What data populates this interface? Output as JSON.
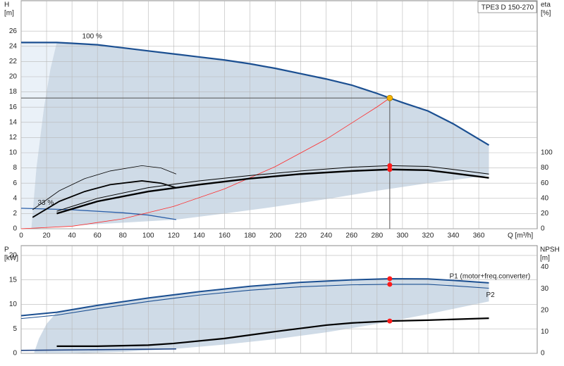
{
  "chart_data": [
    {
      "type": "line",
      "title": "TPE3 D 150-270",
      "y_label": "H",
      "y_unit": "[m]",
      "y2_label": "eta",
      "y2_unit": "[%]",
      "x_label": "Q [m³/h]",
      "xlim": [
        0,
        406
      ],
      "xticks": [
        0,
        20,
        40,
        60,
        80,
        100,
        120,
        140,
        160,
        180,
        200,
        220,
        240,
        260,
        280,
        300,
        320,
        340,
        360
      ],
      "show_xtick_labels": true,
      "ylim": [
        0,
        30
      ],
      "yticks": [
        0,
        2,
        4,
        6,
        8,
        10,
        12,
        14,
        16,
        18,
        20,
        22,
        24,
        26
      ],
      "y2lim": [
        0,
        300
      ],
      "y2ticks": [
        0,
        20,
        40,
        60,
        80,
        100
      ],
      "grid": true,
      "duty_x": 290,
      "marker_color": "#ff1a1a",
      "operating_point": {
        "x": 290,
        "y": 17.2,
        "color": "#f5b400"
      },
      "regions": [
        {
          "color": "#eaf1f8",
          "x": [
            0,
            28,
            23,
            18,
            12,
            8,
            0
          ],
          "values": [
            24.5,
            24.5,
            21,
            16,
            8,
            0,
            0
          ]
        },
        {
          "color": "#cfdbe7",
          "x": [
            8,
            12,
            18,
            23,
            28,
            60,
            100,
            140,
            180,
            220,
            260,
            290,
            320,
            340,
            368,
            368,
            320,
            280,
            240,
            200,
            160,
            122,
            60
          ],
          "values": [
            0,
            8,
            16,
            21,
            24.5,
            24.2,
            23.4,
            22.6,
            21.7,
            20.4,
            18.9,
            17.2,
            15.5,
            13.8,
            11.0,
            7.0,
            6.0,
            5.0,
            3.9,
            2.9,
            2.0,
            1.2,
            0.6
          ]
        }
      ],
      "series": [
        {
          "color": "#1b4f91",
          "width": 2.2,
          "x": [
            0,
            28,
            40,
            60,
            80,
            100,
            120,
            140,
            160,
            180,
            200,
            220,
            240,
            260,
            280,
            290,
            300,
            320,
            340,
            368
          ],
          "values": [
            24.5,
            24.5,
            24.4,
            24.2,
            23.8,
            23.4,
            23.0,
            22.6,
            22.2,
            21.7,
            21.1,
            20.4,
            19.7,
            18.9,
            17.8,
            17.2,
            16.6,
            15.5,
            13.8,
            11.0
          ]
        },
        {
          "color": "#2a5ea8",
          "width": 1.3,
          "x": [
            0,
            40,
            80,
            100,
            122
          ],
          "values": [
            2.7,
            2.5,
            2.1,
            1.8,
            1.2
          ]
        },
        {
          "color": "#ff2a2a",
          "width": 0.8,
          "x": [
            0,
            40,
            80,
            120,
            160,
            200,
            240,
            280,
            290
          ],
          "values": [
            0,
            0.33,
            1.31,
            2.94,
            5.24,
            8.18,
            11.78,
            16.03,
            17.2
          ]
        },
        {
          "color": "#000000",
          "width": 1,
          "axis": "y2",
          "dot": true,
          "x": [
            28,
            60,
            100,
            140,
            180,
            220,
            260,
            290,
            320,
            340,
            368
          ],
          "values": [
            23,
            40,
            54,
            63,
            70,
            76,
            81,
            83,
            82,
            78,
            72
          ]
        },
        {
          "color": "#000000",
          "width": 2.4,
          "axis": "y2",
          "dot": true,
          "x": [
            28,
            60,
            100,
            140,
            180,
            220,
            260,
            290,
            320,
            340,
            368
          ],
          "values": [
            20,
            36,
            49,
            58,
            66,
            72,
            76,
            78,
            77,
            73,
            67
          ]
        },
        {
          "color": "#000000",
          "width": 0.8,
          "axis": "y2",
          "x": [
            9,
            30,
            50,
            70,
            95,
            110,
            122
          ],
          "values": [
            25,
            50,
            66,
            76,
            83,
            80,
            72
          ]
        },
        {
          "color": "#000000",
          "width": 1.8,
          "axis": "y2",
          "x": [
            9,
            30,
            50,
            70,
            95,
            110,
            122
          ],
          "values": [
            15,
            36,
            49,
            58,
            63,
            60,
            54
          ]
        }
      ],
      "annotations": [
        {
          "text": "100 %",
          "x": 48,
          "y": 25.3
        },
        {
          "text": "33 %",
          "x": 13,
          "y": 3.4
        }
      ]
    },
    {
      "type": "line",
      "y_label": "P",
      "y_unit": "[kW]",
      "y2_label": "NPSH",
      "y2_unit": "[m]",
      "xlim": [
        0,
        406
      ],
      "xticks": [
        0,
        20,
        40,
        60,
        80,
        100,
        120,
        140,
        160,
        180,
        200,
        220,
        240,
        260,
        280,
        300,
        320,
        340,
        360
      ],
      "show_xtick_labels": false,
      "ylim": [
        0,
        22
      ],
      "yticks": [
        0,
        5,
        10,
        15,
        20
      ],
      "y2lim": [
        0,
        50
      ],
      "y2ticks": [
        0,
        10,
        20,
        30,
        40
      ],
      "grid": true,
      "duty_x": 290,
      "marker_color": "#ff1a1a",
      "regions": [
        {
          "color": "#cfdbe7",
          "x": [
            10,
            14,
            20,
            28,
            60,
            100,
            140,
            180,
            220,
            260,
            290,
            320,
            340,
            368,
            368,
            320,
            280,
            240,
            200,
            160,
            120,
            80,
            40
          ],
          "values": [
            0,
            3,
            6,
            8.4,
            9.8,
            11.3,
            12.6,
            13.7,
            14.5,
            15.0,
            15.25,
            15.2,
            14.9,
            14.4,
            10.6,
            8.0,
            6.0,
            4.3,
            2.9,
            1.8,
            0.9,
            0.3,
            0
          ]
        }
      ],
      "series": [
        {
          "name": "P1 (motor+freq.converter)",
          "label_side": "above",
          "color": "#1b4f91",
          "width": 2,
          "dot": true,
          "x": [
            0,
            28,
            60,
            100,
            140,
            180,
            220,
            260,
            290,
            320,
            340,
            368
          ],
          "values": [
            7.7,
            8.4,
            9.8,
            11.3,
            12.6,
            13.7,
            14.5,
            15.0,
            15.25,
            15.2,
            14.9,
            14.4
          ]
        },
        {
          "name": "P2",
          "label_side": "below",
          "color": "#1b4f91",
          "width": 1.1,
          "dot": true,
          "x": [
            0,
            28,
            60,
            100,
            140,
            180,
            220,
            260,
            290,
            320,
            340,
            368
          ],
          "values": [
            7.1,
            7.8,
            9.1,
            10.6,
            11.9,
            12.9,
            13.6,
            14.0,
            14.1,
            14.1,
            13.8,
            13.3
          ]
        },
        {
          "color": "#000000",
          "width": 2.2,
          "axis": "y2",
          "dot": true,
          "x": [
            28,
            60,
            100,
            120,
            160,
            200,
            240,
            260,
            290,
            320,
            368
          ],
          "values": [
            3.3,
            3.3,
            3.8,
            4.6,
            6.9,
            10.1,
            13.1,
            14.1,
            15.0,
            15.4,
            16.3
          ]
        },
        {
          "color": "#1b3f80",
          "width": 1.6,
          "x": [
            0,
            60,
            122
          ],
          "values": [
            0.6,
            0.75,
            0.9
          ]
        }
      ]
    }
  ]
}
